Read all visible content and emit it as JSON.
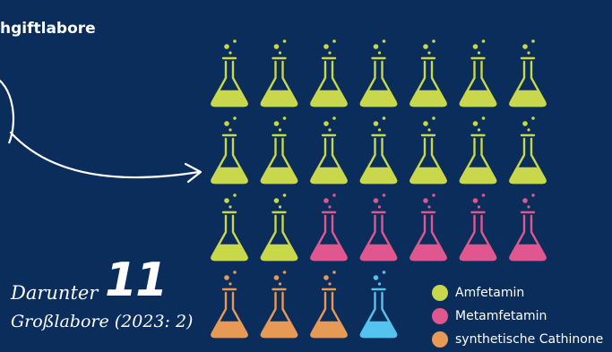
{
  "title": "hgiftlabore",
  "annotation": {
    "prefix": "Darunter",
    "number": "11",
    "subtitle": "Großlabore (2023: 2)"
  },
  "chart_data": {
    "type": "pictogram",
    "rows": [
      [
        "Amfetamin",
        "Amfetamin",
        "Amfetamin",
        "Amfetamin",
        "Amfetamin",
        "Amfetamin",
        "Amfetamin"
      ],
      [
        "Amfetamin",
        "Amfetamin",
        "Amfetamin",
        "Amfetamin",
        "Amfetamin",
        "Amfetamin",
        "Amfetamin"
      ],
      [
        "Amfetamin",
        "Amfetamin",
        "Metamfetamin",
        "Metamfetamin",
        "Metamfetamin",
        "Metamfetamin",
        "Metamfetamin"
      ],
      [
        "synthetische Cathinone",
        "synthetische Cathinone",
        "synthetische Cathinone",
        "other"
      ]
    ],
    "series": [
      {
        "name": "Amfetamin",
        "count": 16,
        "color": "#c8d84a"
      },
      {
        "name": "Metamfetamin",
        "count": 5,
        "color": "#e0568f"
      },
      {
        "name": "synthetische Cathinone",
        "count": 3,
        "color": "#e69a55"
      }
    ],
    "other_color": "#55c3ef",
    "legend": [
      {
        "label": "Amfetamin",
        "color": "#c8d84a"
      },
      {
        "label": "Metamfetamin",
        "color": "#e0568f"
      },
      {
        "label": "synthetische Cathinone",
        "color": "#e69a55"
      }
    ]
  },
  "icons": {
    "flask": "flask-icon",
    "arrow": "arrow-icon"
  }
}
